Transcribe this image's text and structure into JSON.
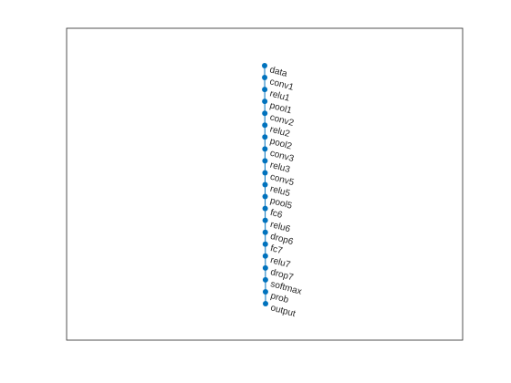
{
  "graph": {
    "type": "layer-graph",
    "edge_color": "#0072BD",
    "node_color": "#0072BD",
    "frame_color": "#262626",
    "background": "#ffffff",
    "layers": [
      {
        "name": "data"
      },
      {
        "name": "conv1"
      },
      {
        "name": "relu1"
      },
      {
        "name": "pool1"
      },
      {
        "name": "conv2"
      },
      {
        "name": "relu2"
      },
      {
        "name": "pool2"
      },
      {
        "name": "conv3"
      },
      {
        "name": "relu3"
      },
      {
        "name": "conv5"
      },
      {
        "name": "relu5"
      },
      {
        "name": "pool5"
      },
      {
        "name": "fc6"
      },
      {
        "name": "relu6"
      },
      {
        "name": "drop6"
      },
      {
        "name": "fc7"
      },
      {
        "name": "relu7"
      },
      {
        "name": "drop7"
      },
      {
        "name": "softmax"
      },
      {
        "name": "prob"
      },
      {
        "name": "output"
      }
    ]
  }
}
